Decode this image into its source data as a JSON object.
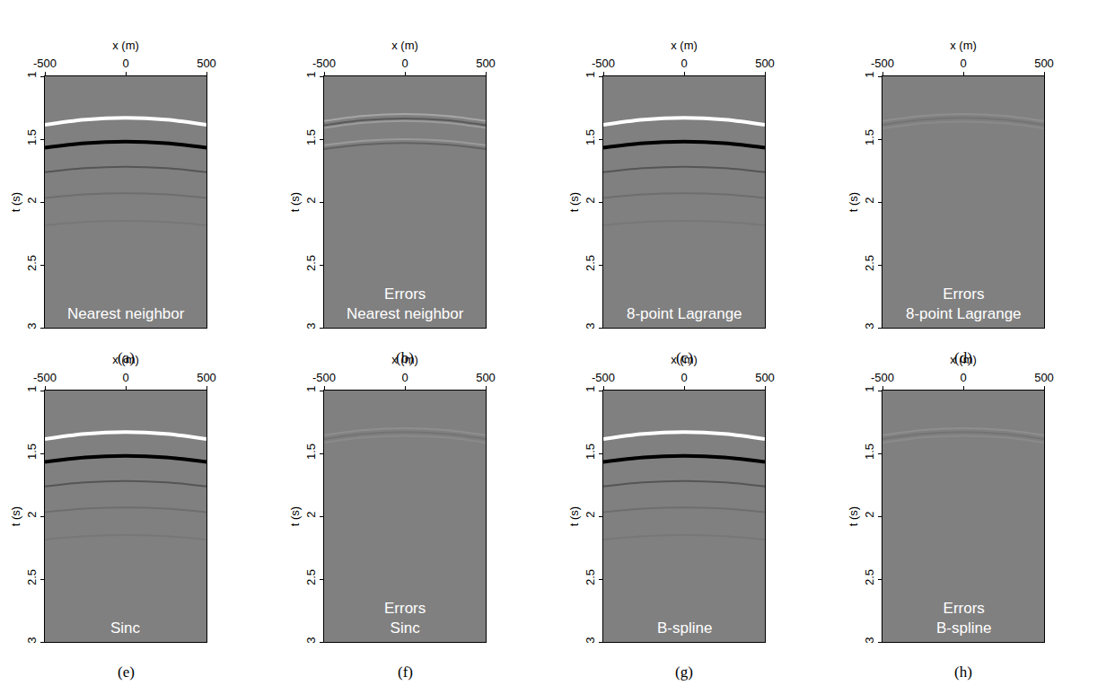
{
  "chart_data": [
    {
      "type": "line",
      "title": "(a)",
      "annotation": "Nearest neighbor",
      "xlabel": "x (m)",
      "ylabel": "t (s)",
      "xlim": [
        -500,
        500
      ],
      "ylim": [
        3,
        1
      ],
      "xticks": [
        -500,
        0,
        500
      ],
      "yticks": [
        1,
        1.5,
        2,
        2.5,
        3
      ],
      "grid": false,
      "series": [
        {
          "color": "#ffffff",
          "x": [
            -500,
            -250,
            0,
            250,
            500
          ],
          "values": [
            1.385,
            1.344,
            1.33,
            1.344,
            1.385
          ]
        },
        {
          "color": "#000000",
          "x": [
            -500,
            -250,
            0,
            250,
            500
          ],
          "values": [
            1.568,
            1.532,
            1.52,
            1.532,
            1.568
          ]
        },
        {
          "color": "#555555",
          "x": [
            -500,
            -250,
            0,
            250,
            500
          ],
          "values": [
            1.763,
            1.731,
            1.72,
            1.731,
            1.763
          ]
        },
        {
          "color": "#6e6e6e",
          "x": [
            -500,
            -250,
            0,
            250,
            500
          ],
          "values": [
            1.968,
            1.94,
            1.93,
            1.94,
            1.968
          ]
        },
        {
          "color": "#777777",
          "x": [
            -500,
            -250,
            0,
            250,
            500
          ],
          "values": [
            2.185,
            2.159,
            2.15,
            2.159,
            2.185
          ]
        }
      ]
    },
    {
      "type": "line",
      "title": "(b)",
      "annotation": "Errors\nNearest neighbor",
      "xlabel": "x (m)",
      "ylabel": "t (s)",
      "xlim": [
        -500,
        500
      ],
      "ylim": [
        3,
        1
      ],
      "xticks": [
        -500,
        0,
        500
      ],
      "yticks": [
        1,
        1.5,
        2,
        2.5,
        3
      ],
      "grid": false,
      "series": [
        {
          "color": "#a6a6a6",
          "x": [
            -500,
            -250,
            0,
            250,
            500
          ],
          "values": [
            1.355,
            1.314,
            1.3,
            1.314,
            1.355
          ]
        },
        {
          "color": "#5a5a5a",
          "x": [
            -500,
            -250,
            0,
            250,
            500
          ],
          "values": [
            1.39,
            1.349,
            1.335,
            1.349,
            1.39
          ]
        },
        {
          "color": "#9c9c9c",
          "x": [
            -500,
            -250,
            0,
            250,
            500
          ],
          "values": [
            1.41,
            1.369,
            1.355,
            1.369,
            1.41
          ]
        },
        {
          "color": "#9a9a9a",
          "x": [
            -500,
            -250,
            0,
            250,
            500
          ],
          "values": [
            1.548,
            1.512,
            1.5,
            1.512,
            1.548
          ]
        },
        {
          "color": "#626262",
          "x": [
            -500,
            -250,
            0,
            250,
            500
          ],
          "values": [
            1.578,
            1.542,
            1.53,
            1.542,
            1.578
          ]
        }
      ]
    },
    {
      "type": "line",
      "title": "(c)",
      "annotation": "8-point Lagrange",
      "xlabel": "x (m)",
      "ylabel": "t (s)",
      "xlim": [
        -500,
        500
      ],
      "ylim": [
        3,
        1
      ],
      "xticks": [
        -500,
        0,
        500
      ],
      "yticks": [
        1,
        1.5,
        2,
        2.5,
        3
      ],
      "grid": false,
      "series": [
        {
          "color": "#ffffff",
          "x": [
            -500,
            -250,
            0,
            250,
            500
          ],
          "values": [
            1.385,
            1.344,
            1.33,
            1.344,
            1.385
          ]
        },
        {
          "color": "#000000",
          "x": [
            -500,
            -250,
            0,
            250,
            500
          ],
          "values": [
            1.568,
            1.532,
            1.52,
            1.532,
            1.568
          ]
        },
        {
          "color": "#555555",
          "x": [
            -500,
            -250,
            0,
            250,
            500
          ],
          "values": [
            1.763,
            1.731,
            1.72,
            1.731,
            1.763
          ]
        },
        {
          "color": "#6e6e6e",
          "x": [
            -500,
            -250,
            0,
            250,
            500
          ],
          "values": [
            1.968,
            1.94,
            1.93,
            1.94,
            1.968
          ]
        },
        {
          "color": "#777777",
          "x": [
            -500,
            -250,
            0,
            250,
            500
          ],
          "values": [
            2.185,
            2.159,
            2.15,
            2.159,
            2.185
          ]
        }
      ]
    },
    {
      "type": "line",
      "title": "(d)",
      "annotation": "Errors\n8-point Lagrange",
      "xlabel": "x (m)",
      "ylabel": "t (s)",
      "xlim": [
        -500,
        500
      ],
      "ylim": [
        3,
        1
      ],
      "xticks": [
        -500,
        0,
        500
      ],
      "yticks": [
        1,
        1.5,
        2,
        2.5,
        3
      ],
      "grid": false,
      "series": [
        {
          "color": "#8e8e8e",
          "x": [
            -500,
            -250,
            0,
            250,
            500
          ],
          "values": [
            1.355,
            1.314,
            1.3,
            1.314,
            1.355
          ]
        },
        {
          "color": "#747474",
          "x": [
            -500,
            -250,
            0,
            250,
            500
          ],
          "values": [
            1.385,
            1.344,
            1.33,
            1.344,
            1.385
          ]
        },
        {
          "color": "#8a8a8a",
          "x": [
            -500,
            -250,
            0,
            250,
            500
          ],
          "values": [
            1.415,
            1.374,
            1.36,
            1.374,
            1.415
          ]
        }
      ]
    },
    {
      "type": "line",
      "title": "(e)",
      "annotation": "Sinc",
      "xlabel": "x (m)",
      "ylabel": "t (s)",
      "xlim": [
        -500,
        500
      ],
      "ylim": [
        3,
        1
      ],
      "xticks": [
        -500,
        0,
        500
      ],
      "yticks": [
        1,
        1.5,
        2,
        2.5,
        3
      ],
      "grid": false,
      "series": [
        {
          "color": "#ffffff",
          "x": [
            -500,
            -250,
            0,
            250,
            500
          ],
          "values": [
            1.385,
            1.344,
            1.33,
            1.344,
            1.385
          ]
        },
        {
          "color": "#000000",
          "x": [
            -500,
            -250,
            0,
            250,
            500
          ],
          "values": [
            1.568,
            1.532,
            1.52,
            1.532,
            1.568
          ]
        },
        {
          "color": "#555555",
          "x": [
            -500,
            -250,
            0,
            250,
            500
          ],
          "values": [
            1.763,
            1.731,
            1.72,
            1.731,
            1.763
          ]
        },
        {
          "color": "#6e6e6e",
          "x": [
            -500,
            -250,
            0,
            250,
            500
          ],
          "values": [
            1.968,
            1.94,
            1.93,
            1.94,
            1.968
          ]
        },
        {
          "color": "#777777",
          "x": [
            -500,
            -250,
            0,
            250,
            500
          ],
          "values": [
            2.185,
            2.159,
            2.15,
            2.159,
            2.185
          ]
        }
      ]
    },
    {
      "type": "line",
      "title": "(f)",
      "annotation": "Errors\nSinc",
      "xlabel": "x (m)",
      "ylabel": "t (s)",
      "xlim": [
        -500,
        500
      ],
      "ylim": [
        3,
        1
      ],
      "xticks": [
        -500,
        0,
        500
      ],
      "yticks": [
        1,
        1.5,
        2,
        2.5,
        3
      ],
      "grid": false,
      "series": [
        {
          "color": "#8e8e8e",
          "x": [
            -500,
            -250,
            0,
            250,
            500
          ],
          "values": [
            1.355,
            1.314,
            1.3,
            1.314,
            1.355
          ]
        },
        {
          "color": "#747474",
          "x": [
            -500,
            -250,
            0,
            250,
            500
          ],
          "values": [
            1.385,
            1.344,
            1.33,
            1.344,
            1.385
          ]
        },
        {
          "color": "#8a8a8a",
          "x": [
            -500,
            -250,
            0,
            250,
            500
          ],
          "values": [
            1.415,
            1.374,
            1.36,
            1.374,
            1.415
          ]
        }
      ]
    },
    {
      "type": "line",
      "title": "(g)",
      "annotation": "B-spline",
      "xlabel": "x (m)",
      "ylabel": "t (s)",
      "xlim": [
        -500,
        500
      ],
      "ylim": [
        3,
        1
      ],
      "xticks": [
        -500,
        0,
        500
      ],
      "yticks": [
        1,
        1.5,
        2,
        2.5,
        3
      ],
      "grid": false,
      "series": [
        {
          "color": "#ffffff",
          "x": [
            -500,
            -250,
            0,
            250,
            500
          ],
          "values": [
            1.385,
            1.344,
            1.33,
            1.344,
            1.385
          ]
        },
        {
          "color": "#000000",
          "x": [
            -500,
            -250,
            0,
            250,
            500
          ],
          "values": [
            1.568,
            1.532,
            1.52,
            1.532,
            1.568
          ]
        },
        {
          "color": "#555555",
          "x": [
            -500,
            -250,
            0,
            250,
            500
          ],
          "values": [
            1.763,
            1.731,
            1.72,
            1.731,
            1.763
          ]
        },
        {
          "color": "#6e6e6e",
          "x": [
            -500,
            -250,
            0,
            250,
            500
          ],
          "values": [
            1.968,
            1.94,
            1.93,
            1.94,
            1.968
          ]
        },
        {
          "color": "#777777",
          "x": [
            -500,
            -250,
            0,
            250,
            500
          ],
          "values": [
            2.185,
            2.159,
            2.15,
            2.159,
            2.185
          ]
        }
      ]
    },
    {
      "type": "line",
      "title": "(h)",
      "annotation": "Errors\nB-spline",
      "xlabel": "x (m)",
      "ylabel": "t (s)",
      "xlim": [
        -500,
        500
      ],
      "ylim": [
        3,
        1
      ],
      "xticks": [
        -500,
        0,
        500
      ],
      "yticks": [
        1,
        1.5,
        2,
        2.5,
        3
      ],
      "grid": false,
      "series": [
        {
          "color": "#8e8e8e",
          "x": [
            -500,
            -250,
            0,
            250,
            500
          ],
          "values": [
            1.355,
            1.314,
            1.3,
            1.314,
            1.355
          ]
        },
        {
          "color": "#747474",
          "x": [
            -500,
            -250,
            0,
            250,
            500
          ],
          "values": [
            1.385,
            1.344,
            1.33,
            1.344,
            1.385
          ]
        },
        {
          "color": "#8a8a8a",
          "x": [
            -500,
            -250,
            0,
            250,
            500
          ],
          "values": [
            1.415,
            1.374,
            1.36,
            1.374,
            1.415
          ]
        }
      ]
    }
  ]
}
